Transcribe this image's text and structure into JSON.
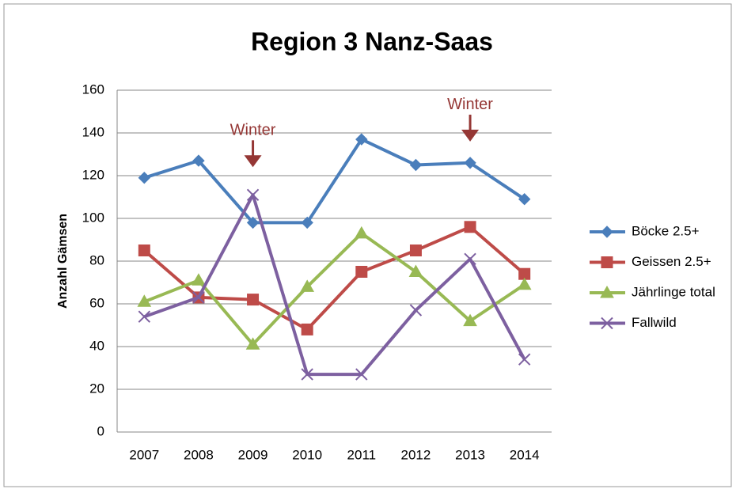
{
  "chart_data": {
    "type": "line",
    "title": "Region 3 Nanz-Saas",
    "y_label": "Anzahl Gämsen",
    "categories": [
      "2007",
      "2008",
      "2009",
      "2010",
      "2011",
      "2012",
      "2013",
      "2014"
    ],
    "series": [
      {
        "name": "Böcke 2.5+",
        "color": "#4a7ebb",
        "marker": "diamond",
        "values": [
          119,
          127,
          98,
          98,
          137,
          125,
          126,
          109
        ]
      },
      {
        "name": "Geissen 2.5+",
        "color": "#be4b48",
        "marker": "square",
        "values": [
          85,
          63,
          62,
          48,
          75,
          85,
          96,
          74
        ]
      },
      {
        "name": "Jährlinge total",
        "color": "#98b954",
        "marker": "triangle",
        "values": [
          61,
          71,
          41,
          68,
          93,
          75,
          52,
          69
        ]
      },
      {
        "name": "Fallwild",
        "color": "#7d60a0",
        "marker": "x",
        "values": [
          54,
          63,
          111,
          27,
          27,
          57,
          81,
          34
        ]
      }
    ],
    "annotations": [
      {
        "text": "Winter",
        "x": "2009",
        "y": 141,
        "color": "#953735"
      },
      {
        "text": "Winter",
        "x": "2013",
        "y": 153,
        "color": "#953735"
      }
    ],
    "ylim": [
      0,
      160
    ],
    "yticks": [
      0,
      20,
      40,
      60,
      80,
      100,
      120,
      140,
      160
    ],
    "grid": true,
    "legend": "right"
  }
}
